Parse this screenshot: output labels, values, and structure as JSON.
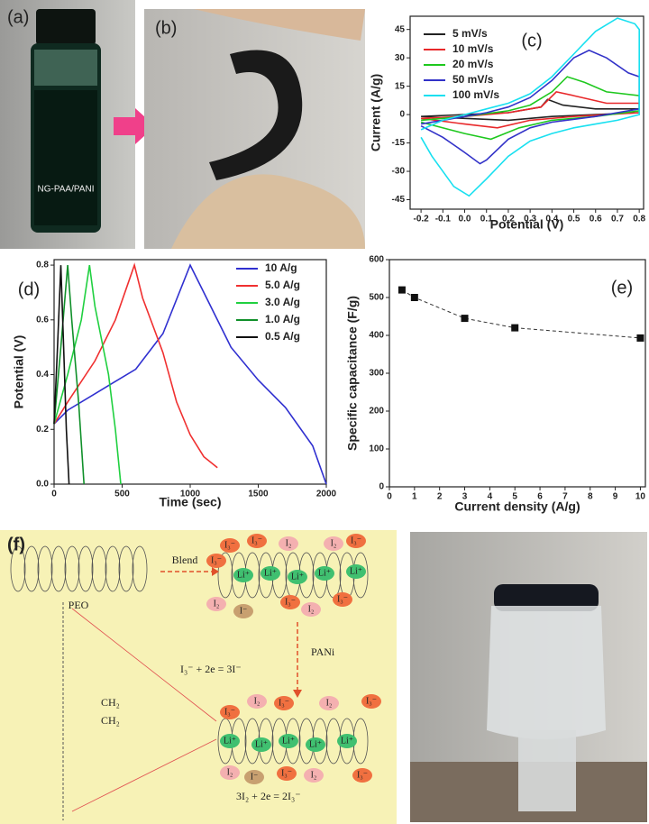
{
  "photos": {
    "a": {
      "label": "(a)",
      "text": "NG-PAA/PANI"
    },
    "b": {
      "label": "(b)"
    }
  },
  "chart_data": [
    {
      "type": "line",
      "panel_label": "(c)",
      "xlabel": "Potential (V)",
      "ylabel": "Current (A/g)",
      "xlim": [
        -0.25,
        0.82
      ],
      "xticks": [
        -0.2,
        -0.1,
        {
          "value": 0,
          "label": "0.0"
        },
        0.1,
        0.2,
        0.3,
        0.4,
        0.5,
        0.6,
        0.7,
        0.8
      ],
      "ylim": [
        -50,
        52
      ],
      "yticks": [
        -45,
        -30,
        -15,
        0,
        15,
        30,
        45
      ],
      "legend": "upper left",
      "series": [
        {
          "name": "5 mV/s",
          "color": "#222222",
          "x": [
            -0.2,
            0,
            0.2,
            0.35,
            0.38,
            0.45,
            0.6,
            0.8,
            0.8,
            0.4,
            0.2,
            0,
            -0.2
          ],
          "values": [
            -1,
            0,
            1,
            4,
            8,
            5,
            3,
            3,
            1,
            -1,
            -3,
            -2,
            -1
          ]
        },
        {
          "name": "10 mV/s",
          "color": "#e8282a",
          "x": [
            -0.2,
            0,
            0.2,
            0.35,
            0.42,
            0.5,
            0.65,
            0.8,
            0.8,
            0.5,
            0.3,
            0.15,
            0,
            -0.2
          ],
          "values": [
            -2,
            -1,
            1,
            4,
            12,
            10,
            6,
            6,
            1,
            -1,
            -3,
            -7,
            -5,
            -2
          ]
        },
        {
          "name": "20 mV/s",
          "color": "#1ec81e",
          "x": [
            -0.2,
            0,
            0.2,
            0.3,
            0.4,
            0.47,
            0.55,
            0.65,
            0.8,
            0.8,
            0.6,
            0.4,
            0.25,
            0.12,
            0,
            -0.2
          ],
          "values": [
            -3,
            -1,
            2,
            5,
            12,
            20,
            17,
            12,
            10,
            2,
            -1,
            -3,
            -7,
            -13,
            -10,
            -4
          ]
        },
        {
          "name": "50 mV/s",
          "color": "#3232c8",
          "x": [
            -0.2,
            -0.1,
            0,
            0.1,
            0.2,
            0.3,
            0.4,
            0.5,
            0.57,
            0.65,
            0.75,
            0.8,
            0.8,
            0.6,
            0.4,
            0.3,
            0.2,
            0.1,
            0.07,
            0,
            -0.1,
            -0.2
          ],
          "values": [
            -5,
            -3,
            -1,
            1,
            4,
            9,
            18,
            30,
            34,
            30,
            22,
            20,
            3,
            -1,
            -4,
            -7,
            -13,
            -24,
            -26,
            -20,
            -12,
            -6
          ]
        },
        {
          "name": "100 mV/s",
          "color": "#18e0f0",
          "x": [
            -0.2,
            -0.1,
            0,
            0.1,
            0.2,
            0.3,
            0.4,
            0.5,
            0.6,
            0.7,
            0.78,
            0.8,
            0.8,
            0.7,
            0.6,
            0.5,
            0.4,
            0.3,
            0.2,
            0.1,
            0.02,
            -0.05,
            -0.15,
            -0.2
          ],
          "values": [
            -8,
            -3,
            0,
            3,
            6,
            11,
            20,
            32,
            44,
            51,
            48,
            45,
            0,
            -3,
            -5,
            -7,
            -10,
            -14,
            -22,
            -34,
            -43,
            -38,
            -22,
            -12
          ]
        }
      ]
    },
    {
      "type": "line",
      "panel_label": "(d)",
      "xlabel": "Time (sec)",
      "ylabel": "Potential (V)",
      "xlim": [
        0,
        2000
      ],
      "xticks": [
        0,
        500,
        1000,
        1500,
        2000
      ],
      "ylim": [
        0,
        0.82
      ],
      "yticks": [
        {
          "value": 0,
          "label": "0.0"
        },
        0.2,
        0.4,
        0.6,
        0.8
      ],
      "legend": "upper right",
      "series": [
        {
          "name": "10 A/g",
          "color": "#3030d0",
          "x": [
            0,
            100,
            300,
            600,
            800,
            1000,
            1100,
            1300,
            1500,
            1700,
            1900,
            2000
          ],
          "values": [
            0.22,
            0.27,
            0.33,
            0.42,
            0.55,
            0.8,
            0.7,
            0.5,
            0.38,
            0.28,
            0.14,
            0
          ]
        },
        {
          "name": "5.0 A/g",
          "color": "#f03030",
          "x": [
            0,
            100,
            300,
            450,
            590,
            650,
            800,
            900,
            1000,
            1100,
            1200
          ],
          "values": [
            0.22,
            0.3,
            0.45,
            0.6,
            0.8,
            0.68,
            0.48,
            0.3,
            0.18,
            0.1,
            0.06
          ]
        },
        {
          "name": "3.0 A/g",
          "color": "#20d040",
          "x": [
            0,
            100,
            200,
            260,
            300,
            400,
            450,
            490
          ],
          "values": [
            0.22,
            0.4,
            0.6,
            0.8,
            0.65,
            0.4,
            0.2,
            0
          ]
        },
        {
          "name": "1.0 A/g",
          "color": "#10902a",
          "x": [
            0,
            50,
            100,
            130,
            180,
            220
          ],
          "values": [
            0.22,
            0.5,
            0.8,
            0.6,
            0.3,
            0
          ]
        },
        {
          "name": "0.5 A/g",
          "color": "#111111",
          "x": [
            0,
            25,
            50,
            70,
            90,
            110
          ],
          "values": [
            0.22,
            0.5,
            0.8,
            0.5,
            0.2,
            0
          ]
        }
      ]
    },
    {
      "type": "scatter",
      "panel_label": "(e)",
      "xlabel": "Current density (A/g)",
      "ylabel": "Specific capacitance (F/g)",
      "xlim": [
        0,
        10.2
      ],
      "xticks": [
        0,
        1,
        2,
        3,
        4,
        5,
        6,
        7,
        8,
        9,
        10
      ],
      "ylim": [
        0,
        600
      ],
      "yticks": [
        0,
        100,
        200,
        300,
        400,
        500,
        600
      ],
      "line_style": "dashed",
      "color": "#111111",
      "x": [
        0.5,
        1,
        3,
        5,
        10
      ],
      "values": [
        520,
        500,
        445,
        420,
        393
      ]
    }
  ],
  "diagram": {
    "label": "(f)",
    "blend": "Blend",
    "peo": "PEO",
    "pani": "PANi",
    "eq1": "I₃⁻ + 2e = 3I⁻",
    "eq2": "3I₂ + 2e = 2I₃⁻",
    "ch_a": "CH₂",
    "ch_b": "CH₂",
    "li": "Li⁺",
    "i2": "I₂",
    "i3": "I₃⁻",
    "im": "I⁻"
  }
}
